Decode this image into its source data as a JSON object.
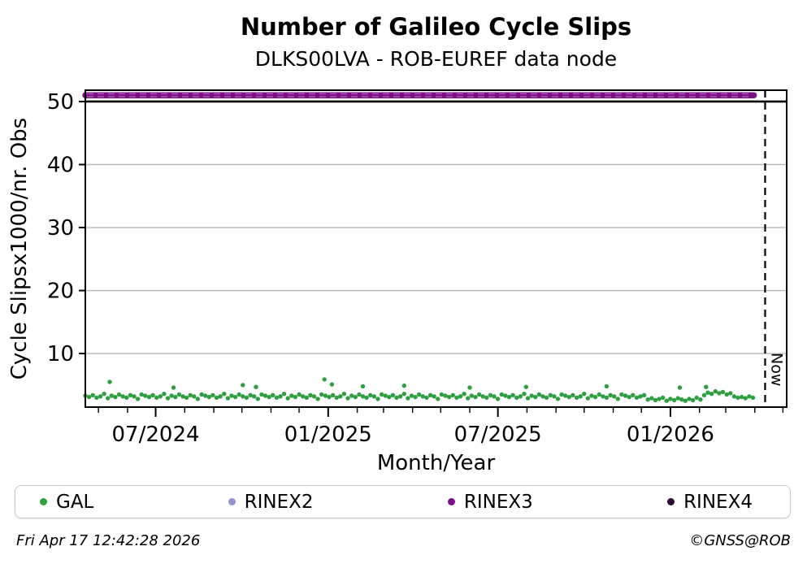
{
  "title": "Number of Galileo Cycle Slips",
  "subtitle": "DLKS00LVA - ROB-EUREF data node",
  "footer": {
    "timestamp": "Fri Apr 17 12:42:28 2026",
    "copyright": "©GNSS@ROB"
  },
  "legend": {
    "items": [
      {
        "label": "GAL",
        "color": "#2f9e41"
      },
      {
        "label": "RINEX2",
        "color": "#9093cf"
      },
      {
        "label": "RINEX3",
        "color": "#7d0f86"
      },
      {
        "label": "RINEX4",
        "color": "#2d0b33"
      }
    ]
  },
  "chart_data": {
    "type": "scatter",
    "title": "Number of Galileo Cycle Slips",
    "subtitle": "DLKS00LVA - ROB-EUREF data node",
    "xlabel": "Month/Year",
    "ylabel": "Cycle Slipsx1000/nr. Obs",
    "now_label": "Now",
    "x_unit": "days from 2024-04-17",
    "xlim_days": [
      0,
      748
    ],
    "ylim": [
      1.5,
      51.8
    ],
    "yticks": [
      10,
      20,
      30,
      40,
      50
    ],
    "separator_y": 50,
    "grid": true,
    "grid_color": "#b7b7b7",
    "now_day": 725,
    "xticks_major": [
      {
        "label": "07/2024",
        "day": 75
      },
      {
        "label": "01/2025",
        "day": 259
      },
      {
        "label": "07/2025",
        "day": 440
      },
      {
        "label": "01/2026",
        "day": 624
      }
    ],
    "xticks_minor_days": [
      14,
      45,
      106,
      137,
      167,
      198,
      228,
      290,
      318,
      349,
      379,
      410,
      471,
      502,
      532,
      563,
      593,
      655,
      683,
      714,
      744
    ],
    "series": [
      {
        "name": "GAL",
        "style": "points",
        "color": "#2f9e41",
        "marker_radius": 2.7,
        "points": [
          [
            0,
            3.3
          ],
          [
            4,
            3.1
          ],
          [
            8,
            3.4
          ],
          [
            12,
            3.0
          ],
          [
            16,
            3.2
          ],
          [
            20,
            3.6
          ],
          [
            24,
            2.9
          ],
          [
            28,
            3.3
          ],
          [
            32,
            3.1
          ],
          [
            36,
            3.5
          ],
          [
            40,
            3.2
          ],
          [
            44,
            3.0
          ],
          [
            48,
            3.4
          ],
          [
            52,
            3.2
          ],
          [
            56,
            2.8
          ],
          [
            60,
            3.5
          ],
          [
            64,
            3.3
          ],
          [
            68,
            3.1
          ],
          [
            72,
            3.4
          ],
          [
            76,
            3.0
          ],
          [
            80,
            3.2
          ],
          [
            84,
            3.6
          ],
          [
            88,
            2.9
          ],
          [
            92,
            3.3
          ],
          [
            96,
            3.1
          ],
          [
            100,
            3.5
          ],
          [
            104,
            3.2
          ],
          [
            108,
            3.0
          ],
          [
            112,
            3.4
          ],
          [
            116,
            3.2
          ],
          [
            120,
            2.8
          ],
          [
            124,
            3.5
          ],
          [
            128,
            3.3
          ],
          [
            132,
            3.1
          ],
          [
            136,
            3.4
          ],
          [
            140,
            3.0
          ],
          [
            144,
            3.2
          ],
          [
            148,
            3.6
          ],
          [
            152,
            2.9
          ],
          [
            156,
            3.3
          ],
          [
            160,
            3.1
          ],
          [
            164,
            3.5
          ],
          [
            168,
            3.2
          ],
          [
            172,
            3.0
          ],
          [
            176,
            3.4
          ],
          [
            180,
            3.2
          ],
          [
            184,
            2.8
          ],
          [
            188,
            3.5
          ],
          [
            192,
            3.3
          ],
          [
            196,
            3.1
          ],
          [
            200,
            3.4
          ],
          [
            204,
            3.0
          ],
          [
            208,
            3.2
          ],
          [
            212,
            3.6
          ],
          [
            216,
            2.9
          ],
          [
            220,
            3.3
          ],
          [
            224,
            3.1
          ],
          [
            228,
            3.5
          ],
          [
            232,
            3.2
          ],
          [
            236,
            3.0
          ],
          [
            240,
            3.4
          ],
          [
            244,
            3.2
          ],
          [
            248,
            2.8
          ],
          [
            252,
            3.5
          ],
          [
            256,
            3.3
          ],
          [
            260,
            3.1
          ],
          [
            264,
            3.4
          ],
          [
            268,
            3.0
          ],
          [
            272,
            3.2
          ],
          [
            276,
            3.6
          ],
          [
            280,
            2.9
          ],
          [
            284,
            3.3
          ],
          [
            288,
            3.1
          ],
          [
            292,
            3.5
          ],
          [
            296,
            3.2
          ],
          [
            300,
            3.0
          ],
          [
            304,
            3.4
          ],
          [
            308,
            3.2
          ],
          [
            312,
            2.8
          ],
          [
            316,
            3.5
          ],
          [
            320,
            3.3
          ],
          [
            324,
            3.1
          ],
          [
            328,
            3.4
          ],
          [
            332,
            3.0
          ],
          [
            336,
            3.2
          ],
          [
            340,
            3.6
          ],
          [
            344,
            2.9
          ],
          [
            348,
            3.3
          ],
          [
            352,
            3.1
          ],
          [
            356,
            3.5
          ],
          [
            360,
            3.2
          ],
          [
            364,
            3.0
          ],
          [
            368,
            3.4
          ],
          [
            372,
            3.2
          ],
          [
            376,
            2.8
          ],
          [
            380,
            3.5
          ],
          [
            384,
            3.3
          ],
          [
            388,
            3.1
          ],
          [
            392,
            3.4
          ],
          [
            396,
            3.0
          ],
          [
            400,
            3.2
          ],
          [
            404,
            3.6
          ],
          [
            408,
            2.9
          ],
          [
            412,
            3.3
          ],
          [
            416,
            3.1
          ],
          [
            420,
            3.5
          ],
          [
            424,
            3.2
          ],
          [
            428,
            3.0
          ],
          [
            432,
            3.4
          ],
          [
            436,
            3.2
          ],
          [
            440,
            2.8
          ],
          [
            444,
            3.5
          ],
          [
            448,
            3.3
          ],
          [
            452,
            3.1
          ],
          [
            456,
            3.4
          ],
          [
            460,
            3.0
          ],
          [
            464,
            3.2
          ],
          [
            468,
            3.6
          ],
          [
            472,
            2.9
          ],
          [
            476,
            3.3
          ],
          [
            480,
            3.1
          ],
          [
            484,
            3.5
          ],
          [
            488,
            3.2
          ],
          [
            492,
            3.0
          ],
          [
            496,
            3.4
          ],
          [
            500,
            3.2
          ],
          [
            504,
            2.8
          ],
          [
            508,
            3.5
          ],
          [
            512,
            3.3
          ],
          [
            516,
            3.1
          ],
          [
            520,
            3.4
          ],
          [
            524,
            3.0
          ],
          [
            528,
            3.2
          ],
          [
            532,
            3.6
          ],
          [
            536,
            2.9
          ],
          [
            540,
            3.3
          ],
          [
            544,
            3.1
          ],
          [
            548,
            3.5
          ],
          [
            552,
            3.2
          ],
          [
            556,
            3.0
          ],
          [
            560,
            3.4
          ],
          [
            564,
            3.2
          ],
          [
            568,
            2.8
          ],
          [
            572,
            3.5
          ],
          [
            576,
            3.3
          ],
          [
            580,
            3.1
          ],
          [
            584,
            3.4
          ],
          [
            588,
            3.0
          ],
          [
            592,
            3.2
          ],
          [
            596,
            3.4
          ],
          [
            600,
            2.7
          ],
          [
            604,
            2.9
          ],
          [
            608,
            2.6
          ],
          [
            612,
            2.8
          ],
          [
            616,
            3.0
          ],
          [
            620,
            2.5
          ],
          [
            624,
            2.8
          ],
          [
            628,
            2.6
          ],
          [
            632,
            2.9
          ],
          [
            636,
            2.7
          ],
          [
            640,
            2.5
          ],
          [
            644,
            2.8
          ],
          [
            648,
            2.6
          ],
          [
            652,
            3.0
          ],
          [
            656,
            2.7
          ],
          [
            660,
            3.4
          ],
          [
            664,
            3.8
          ],
          [
            668,
            3.6
          ],
          [
            672,
            4.0
          ],
          [
            676,
            3.7
          ],
          [
            680,
            3.9
          ],
          [
            684,
            3.5
          ],
          [
            688,
            3.7
          ],
          [
            692,
            3.2
          ],
          [
            696,
            3.0
          ],
          [
            700,
            3.1
          ],
          [
            704,
            2.9
          ],
          [
            708,
            3.2
          ],
          [
            712,
            3.0
          ]
        ],
        "outliers": [
          [
            26,
            5.5
          ],
          [
            94,
            4.6
          ],
          [
            168,
            5.0
          ],
          [
            182,
            4.7
          ],
          [
            255,
            5.9
          ],
          [
            263,
            5.1
          ],
          [
            296,
            4.8
          ],
          [
            340,
            4.9
          ],
          [
            410,
            4.6
          ],
          [
            470,
            4.7
          ],
          [
            556,
            4.8
          ],
          [
            634,
            4.6
          ],
          [
            662,
            4.7
          ]
        ]
      },
      {
        "name": "RINEX3",
        "style": "thick-dashed-band",
        "color": "#7d0f86",
        "dash_color": "#a758b5",
        "y": 51.0,
        "day_start": 0,
        "day_end": 713
      }
    ]
  }
}
